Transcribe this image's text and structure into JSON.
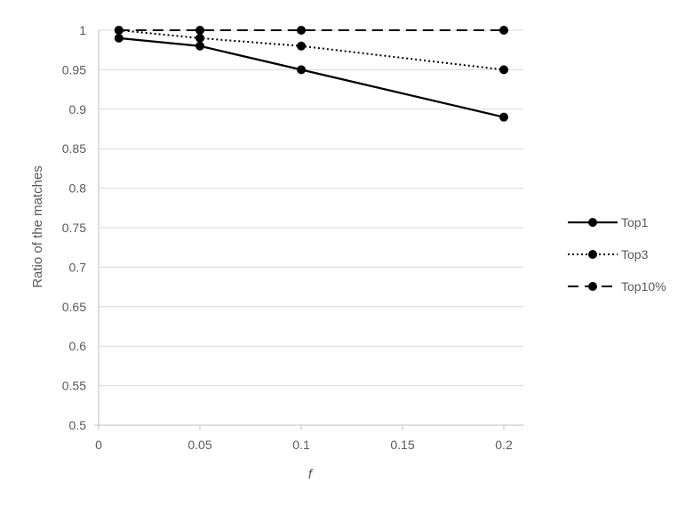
{
  "chart_data": {
    "type": "line",
    "title": "",
    "xlabel": "f",
    "ylabel": "Ratio of the matches",
    "xlim": [
      0,
      0.2
    ],
    "ylim": [
      0.5,
      1
    ],
    "x_ticks": [
      "0",
      "0.05",
      "0.1",
      "0.15",
      "0.2"
    ],
    "y_ticks": [
      "0.5",
      "0.55",
      "0.6",
      "0.65",
      "0.7",
      "0.75",
      "0.8",
      "0.85",
      "0.9",
      "0.95",
      "1"
    ],
    "grid": "horizontal",
    "legend_position": "right",
    "x": [
      0.01,
      0.05,
      0.1,
      0.2
    ],
    "series": [
      {
        "name": "Top1",
        "style": "solid",
        "values": [
          0.99,
          0.98,
          0.95,
          0.89
        ]
      },
      {
        "name": "Top3",
        "style": "dotted",
        "values": [
          1.0,
          0.99,
          0.98,
          0.95
        ]
      },
      {
        "name": "Top10%",
        "style": "dashed",
        "values": [
          1.0,
          1.0,
          1.0,
          1.0
        ]
      }
    ],
    "colors": {
      "line": "#000000",
      "grid": "#d9d9d9",
      "axis": "#bfbfbf",
      "text": "#595959"
    }
  }
}
